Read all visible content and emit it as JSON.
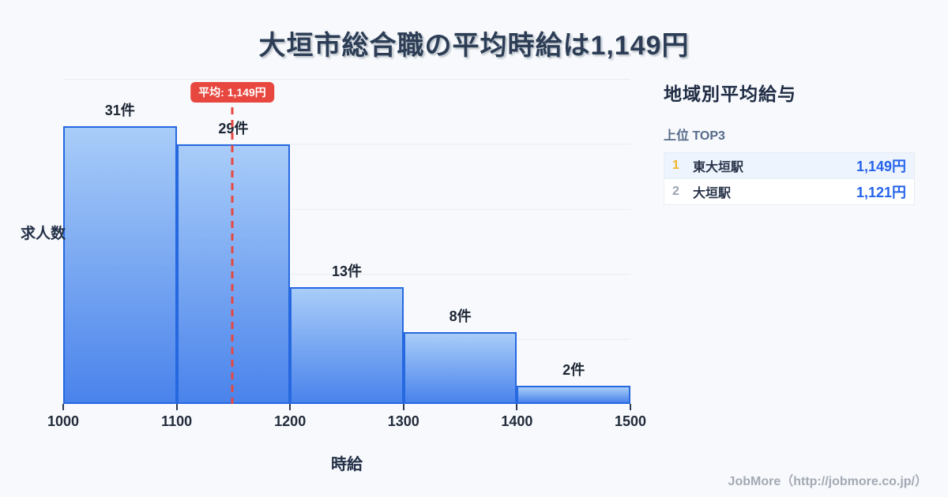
{
  "title": "大垣市総合職の平均時給は1,149円",
  "chart_data": {
    "type": "bar",
    "subtype": "histogram",
    "title": "大垣市総合職の平均時給は1,149円",
    "xlabel": "時給",
    "ylabel": "求人数",
    "xlim": [
      1000,
      1500
    ],
    "ylim": [
      0,
      36.3
    ],
    "grid": "horizontal, 5 even divisions, no y tick labels",
    "x_ticks": [
      1000,
      1100,
      1200,
      1300,
      1400,
      1500
    ],
    "bins": [
      {
        "from": 1000,
        "to": 1100,
        "count": 31,
        "label": "31件"
      },
      {
        "from": 1100,
        "to": 1200,
        "count": 29,
        "label": "29件"
      },
      {
        "from": 1200,
        "to": 1300,
        "count": 13,
        "label": "13件"
      },
      {
        "from": 1300,
        "to": 1400,
        "count": 8,
        "label": "8件"
      },
      {
        "from": 1400,
        "to": 1500,
        "count": 2,
        "label": "2件"
      }
    ],
    "mean_line": {
      "value": 1149,
      "label": "平均: 1,149円"
    }
  },
  "panel": {
    "title": "地域別平均給与",
    "subtitle": "上位 TOP3",
    "rows": [
      {
        "rank": "1",
        "name": "東大垣駅",
        "value": "1,149円"
      },
      {
        "rank": "2",
        "name": "大垣駅",
        "value": "1,121円"
      }
    ]
  },
  "footer": {
    "credit": "JobMore（http://jobmore.co.jp/）"
  },
  "colors": {
    "background": "#f7f9fc",
    "title_text": "#2c3d55",
    "bar_border": "#2668e0",
    "bar_gradient_top": "#a9cdf9",
    "bar_gradient_bottom": "#4a83eb",
    "gridline": "#e8edf4",
    "mean_red": "#e8473f",
    "rank1_gold": "#f0b429",
    "rank2_gray": "#9aa3b2",
    "value_blue": "#2563eb",
    "row_highlight": "#eef4fd"
  }
}
